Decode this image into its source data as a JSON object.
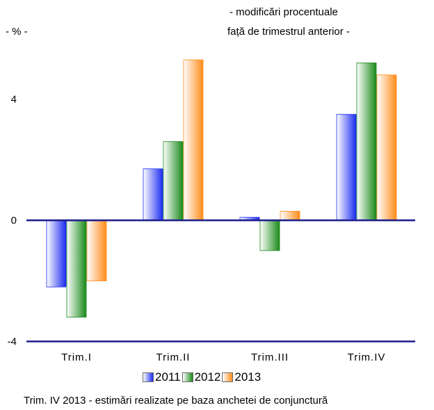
{
  "header": {
    "unit_label": "- % -",
    "subtitle_line1": "- modificări procentuale",
    "subtitle_line2": "față de trimestrul anterior -"
  },
  "footnote": "Trim. IV 2013 - estimări realizate pe baza anchetei de conjunctură",
  "colors": {
    "axis": "#1a1a8c",
    "s2011": "#1c2cf0",
    "s2012": "#1a8a1a",
    "s2013": "#ff8c1a"
  },
  "chart_data": {
    "type": "bar",
    "categories": [
      "Trim.I",
      "Trim.II",
      "Trim.III",
      "Trim.IV"
    ],
    "series": [
      {
        "name": "2011",
        "values": [
          -2.2,
          1.7,
          0.1,
          3.5
        ]
      },
      {
        "name": "2012",
        "values": [
          -3.2,
          2.6,
          -1.0,
          5.2
        ]
      },
      {
        "name": "2013",
        "values": [
          -2.0,
          5.3,
          0.3,
          4.8
        ]
      }
    ],
    "ylim": [
      -4,
      6
    ],
    "yticks": [
      "-4",
      "0",
      "4"
    ],
    "grid": false,
    "legend_position": "bottom"
  }
}
